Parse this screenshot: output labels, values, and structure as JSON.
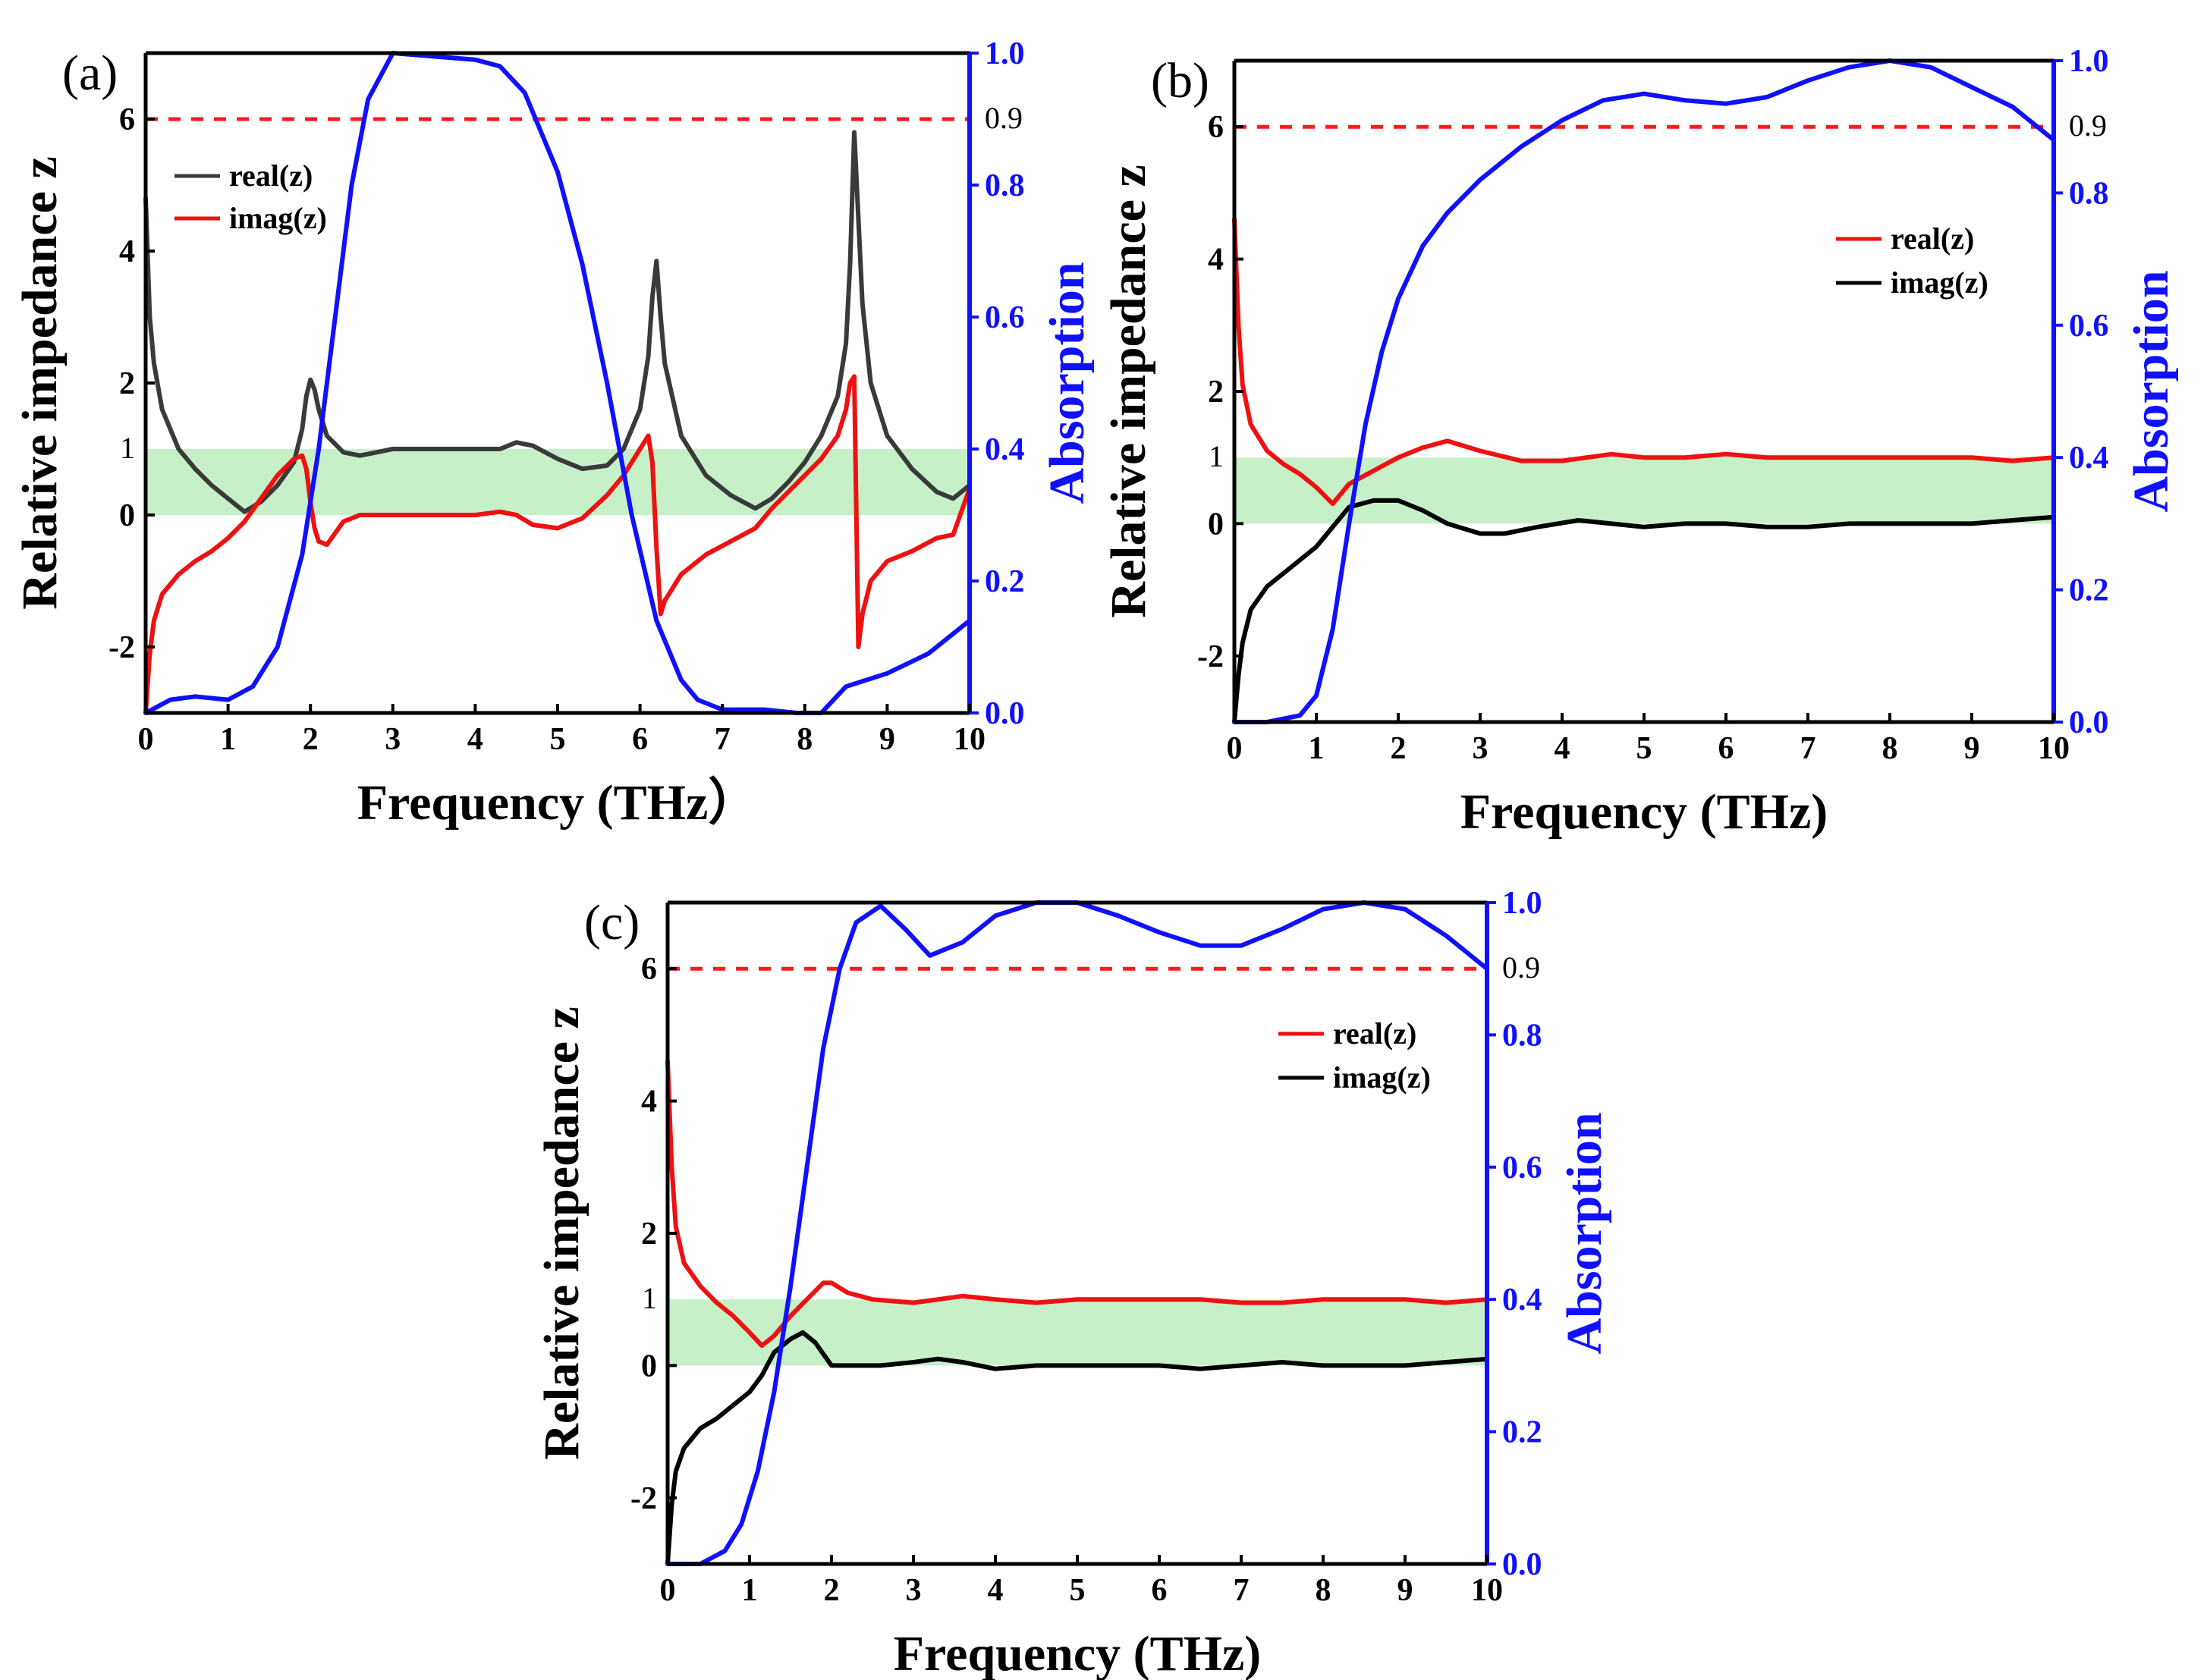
{
  "chart_data": [
    {
      "id": "a",
      "type": "line",
      "panel_label": "(a)",
      "xlabel": "Frequency (THz）",
      "ylabel_left": "Relative impedance z",
      "ylabel_right": "Absorption",
      "xlim": [
        0,
        10
      ],
      "ylim_left": [
        -3,
        7
      ],
      "ylim_right": [
        0,
        1
      ],
      "x_ticks": [
        "0",
        "1",
        "2",
        "3",
        "4",
        "5",
        "6",
        "7",
        "8",
        "9",
        "10"
      ],
      "y_ticks_left": [
        "-2",
        "0",
        "2",
        "4",
        "6"
      ],
      "y_ticks_left_extra": [
        "1"
      ],
      "y_ticks_right": [
        "0.0",
        "0.2",
        "0.4",
        "0.6",
        "0.8",
        "1.0"
      ],
      "y_ticks_right_extra": [
        "0.9"
      ],
      "band": [
        0,
        1
      ],
      "ref_line_absorption": 0.9,
      "legend": [
        "real(z)",
        "imag(z)"
      ],
      "series": [
        {
          "name": "real(z)",
          "color": "#3a3a3a",
          "axis": "left",
          "x": [
            0,
            0.05,
            0.1,
            0.2,
            0.4,
            0.6,
            0.8,
            1.0,
            1.2,
            1.4,
            1.6,
            1.8,
            1.9,
            1.95,
            2.0,
            2.05,
            2.1,
            2.2,
            2.4,
            2.6,
            3.0,
            3.5,
            4.0,
            4.3,
            4.5,
            4.7,
            5.0,
            5.3,
            5.6,
            5.8,
            6.0,
            6.1,
            6.15,
            6.2,
            6.25,
            6.3,
            6.5,
            6.8,
            7.1,
            7.4,
            7.6,
            7.8,
            8.0,
            8.2,
            8.4,
            8.5,
            8.55,
            8.6,
            8.65,
            8.7,
            8.8,
            9.0,
            9.3,
            9.6,
            9.8,
            10.0
          ],
          "y": [
            4.8,
            3.0,
            2.3,
            1.6,
            1.0,
            0.7,
            0.45,
            0.25,
            0.05,
            0.2,
            0.45,
            0.8,
            1.3,
            1.8,
            2.05,
            1.9,
            1.6,
            1.2,
            0.95,
            0.9,
            1.0,
            1.0,
            1.0,
            1.0,
            1.1,
            1.05,
            0.85,
            0.7,
            0.75,
            1.0,
            1.6,
            2.4,
            3.3,
            3.85,
            3.0,
            2.3,
            1.2,
            0.6,
            0.3,
            0.1,
            0.25,
            0.5,
            0.8,
            1.2,
            1.8,
            2.6,
            3.8,
            5.8,
            4.5,
            3.2,
            2.0,
            1.2,
            0.7,
            0.35,
            0.25,
            0.45
          ]
        },
        {
          "name": "imag(z)",
          "color": "#ee1111",
          "axis": "left",
          "x": [
            0,
            0.05,
            0.1,
            0.2,
            0.4,
            0.6,
            0.8,
            1.0,
            1.2,
            1.4,
            1.6,
            1.8,
            1.9,
            1.95,
            2.0,
            2.05,
            2.1,
            2.2,
            2.4,
            2.6,
            3.0,
            3.5,
            4.0,
            4.3,
            4.5,
            4.7,
            5.0,
            5.3,
            5.6,
            5.8,
            6.0,
            6.1,
            6.15,
            6.2,
            6.25,
            6.3,
            6.5,
            6.8,
            7.1,
            7.4,
            7.6,
            7.8,
            8.0,
            8.2,
            8.4,
            8.5,
            8.55,
            8.6,
            8.65,
            8.7,
            8.8,
            9.0,
            9.3,
            9.6,
            9.8,
            10.0
          ],
          "y": [
            -3.0,
            -2.1,
            -1.6,
            -1.2,
            -0.9,
            -0.7,
            -0.55,
            -0.35,
            -0.1,
            0.25,
            0.6,
            0.85,
            0.9,
            0.7,
            0.2,
            -0.2,
            -0.4,
            -0.45,
            -0.1,
            0.0,
            0.0,
            0.0,
            0.0,
            0.05,
            0.0,
            -0.15,
            -0.2,
            -0.05,
            0.3,
            0.6,
            1.0,
            1.2,
            0.8,
            -0.5,
            -1.5,
            -1.3,
            -0.9,
            -0.6,
            -0.4,
            -0.2,
            0.1,
            0.35,
            0.6,
            0.85,
            1.2,
            1.6,
            2.0,
            2.1,
            -2.0,
            -1.5,
            -1.0,
            -0.7,
            -0.55,
            -0.35,
            -0.3,
            0.4
          ]
        },
        {
          "name": "Absorption",
          "color": "#1010ff",
          "axis": "right",
          "x": [
            0,
            0.3,
            0.6,
            1.0,
            1.3,
            1.6,
            1.9,
            2.1,
            2.3,
            2.5,
            2.7,
            3.0,
            3.5,
            4.0,
            4.3,
            4.6,
            5.0,
            5.3,
            5.6,
            5.9,
            6.2,
            6.5,
            6.7,
            7.0,
            7.5,
            7.9,
            8.2,
            8.5,
            9.0,
            9.5,
            10.0
          ],
          "y": [
            0.0,
            0.02,
            0.025,
            0.02,
            0.04,
            0.1,
            0.24,
            0.4,
            0.6,
            0.8,
            0.93,
            1.0,
            0.995,
            0.99,
            0.98,
            0.94,
            0.82,
            0.68,
            0.5,
            0.3,
            0.14,
            0.05,
            0.02,
            0.005,
            0.005,
            0.0,
            0.0,
            0.04,
            0.06,
            0.09,
            0.14
          ]
        }
      ]
    },
    {
      "id": "b",
      "type": "line",
      "panel_label": "(b)",
      "xlabel": "Frequency (THz)",
      "ylabel_left": "Relative impedance z",
      "ylabel_right": "Absorption",
      "xlim": [
        0,
        10
      ],
      "ylim_left": [
        -3,
        7
      ],
      "ylim_right": [
        0,
        1
      ],
      "x_ticks": [
        "0",
        "1",
        "2",
        "3",
        "4",
        "5",
        "6",
        "7",
        "8",
        "9",
        "10"
      ],
      "y_ticks_left": [
        "-2",
        "0",
        "2",
        "4",
        "6"
      ],
      "y_ticks_left_extra": [
        "1"
      ],
      "y_ticks_right": [
        "0.0",
        "0.2",
        "0.4",
        "0.6",
        "0.8",
        "1.0"
      ],
      "y_ticks_right_extra": [
        "0.9"
      ],
      "band": [
        0,
        1
      ],
      "ref_line_absorption": 0.9,
      "legend": [
        "real(z)",
        "imag(z)"
      ],
      "series": [
        {
          "name": "real(z)",
          "color": "#ee1111",
          "axis": "left",
          "x": [
            0,
            0.05,
            0.1,
            0.2,
            0.4,
            0.6,
            0.8,
            1.0,
            1.2,
            1.4,
            1.7,
            2.0,
            2.3,
            2.6,
            3.0,
            3.5,
            4.0,
            4.6,
            5.0,
            5.5,
            6.0,
            6.5,
            7.0,
            7.5,
            8.0,
            8.5,
            9.0,
            9.5,
            10.0
          ],
          "y": [
            4.6,
            3.0,
            2.1,
            1.5,
            1.1,
            0.9,
            0.75,
            0.55,
            0.3,
            0.6,
            0.8,
            1.0,
            1.15,
            1.25,
            1.1,
            0.95,
            0.95,
            1.05,
            1.0,
            1.0,
            1.05,
            1.0,
            1.0,
            1.0,
            1.0,
            1.0,
            1.0,
            0.95,
            1.0
          ]
        },
        {
          "name": "imag(z)",
          "color": "#000000",
          "axis": "left",
          "x": [
            0,
            0.05,
            0.1,
            0.2,
            0.4,
            0.6,
            0.8,
            1.0,
            1.2,
            1.4,
            1.7,
            2.0,
            2.3,
            2.6,
            3.0,
            3.3,
            3.7,
            4.2,
            4.6,
            5.0,
            5.5,
            6.0,
            6.5,
            7.0,
            7.5,
            8.0,
            8.5,
            9.0,
            9.5,
            10.0
          ],
          "y": [
            -3.0,
            -2.3,
            -1.8,
            -1.3,
            -0.95,
            -0.75,
            -0.55,
            -0.35,
            -0.05,
            0.25,
            0.35,
            0.35,
            0.2,
            0.0,
            -0.15,
            -0.15,
            -0.05,
            0.05,
            0.0,
            -0.05,
            0.0,
            0.0,
            -0.05,
            -0.05,
            0.0,
            0.0,
            0.0,
            0.0,
            0.05,
            0.1
          ]
        },
        {
          "name": "Absorption",
          "color": "#1010ff",
          "axis": "right",
          "x": [
            0,
            0.4,
            0.8,
            1.0,
            1.2,
            1.4,
            1.6,
            1.8,
            2.0,
            2.3,
            2.6,
            3.0,
            3.5,
            4.0,
            4.5,
            5.0,
            5.5,
            6.0,
            6.5,
            7.0,
            7.5,
            8.0,
            8.5,
            9.0,
            9.5,
            10.0
          ],
          "y": [
            0.0,
            0.0,
            0.01,
            0.04,
            0.14,
            0.3,
            0.45,
            0.56,
            0.64,
            0.72,
            0.77,
            0.82,
            0.87,
            0.91,
            0.94,
            0.95,
            0.94,
            0.935,
            0.945,
            0.97,
            0.99,
            1.0,
            0.99,
            0.96,
            0.93,
            0.88
          ]
        }
      ]
    },
    {
      "id": "c",
      "type": "line",
      "panel_label": "(c)",
      "xlabel": "Frequency (THz)",
      "ylabel_left": "Relative impedance z",
      "ylabel_right": "Absorption",
      "xlim": [
        0,
        10
      ],
      "ylim_left": [
        -3,
        7
      ],
      "ylim_right": [
        0,
        1
      ],
      "x_ticks": [
        "0",
        "1",
        "2",
        "3",
        "4",
        "5",
        "6",
        "7",
        "8",
        "9",
        "10"
      ],
      "y_ticks_left": [
        "-2",
        "0",
        "2",
        "4",
        "6"
      ],
      "y_ticks_left_extra": [
        "1"
      ],
      "y_ticks_right": [
        "0.0",
        "0.2",
        "0.4",
        "0.6",
        "0.8",
        "1.0"
      ],
      "y_ticks_right_extra": [
        "0.9"
      ],
      "band": [
        0,
        1
      ],
      "ref_line_absorption": 0.9,
      "legend": [
        "real(z)",
        "imag(z)"
      ],
      "series": [
        {
          "name": "real(z)",
          "color": "#ee1111",
          "axis": "left",
          "x": [
            0,
            0.05,
            0.1,
            0.2,
            0.4,
            0.6,
            0.8,
            1.0,
            1.15,
            1.3,
            1.5,
            1.7,
            1.9,
            2.0,
            2.2,
            2.5,
            3.0,
            3.6,
            4.0,
            4.5,
            5.0,
            5.5,
            6.0,
            6.5,
            7.0,
            7.5,
            8.0,
            8.5,
            9.0,
            9.5,
            10.0
          ],
          "y": [
            4.6,
            3.0,
            2.1,
            1.55,
            1.2,
            0.95,
            0.75,
            0.5,
            0.3,
            0.45,
            0.75,
            1.0,
            1.25,
            1.25,
            1.1,
            1.0,
            0.95,
            1.05,
            1.0,
            0.95,
            1.0,
            1.0,
            1.0,
            1.0,
            0.95,
            0.95,
            1.0,
            1.0,
            1.0,
            0.95,
            1.0
          ]
        },
        {
          "name": "imag(z)",
          "color": "#000000",
          "axis": "left",
          "x": [
            0,
            0.05,
            0.1,
            0.2,
            0.4,
            0.6,
            0.8,
            1.0,
            1.15,
            1.3,
            1.5,
            1.65,
            1.8,
            2.0,
            2.2,
            2.6,
            3.0,
            3.3,
            3.6,
            4.0,
            4.5,
            5.0,
            5.5,
            6.0,
            6.5,
            7.0,
            7.5,
            8.0,
            8.5,
            9.0,
            9.5,
            10.0
          ],
          "y": [
            -3.0,
            -2.1,
            -1.6,
            -1.25,
            -0.95,
            -0.8,
            -0.6,
            -0.4,
            -0.15,
            0.2,
            0.4,
            0.5,
            0.35,
            0.0,
            0.0,
            0.0,
            0.05,
            0.1,
            0.05,
            -0.05,
            0.0,
            0.0,
            0.0,
            0.0,
            -0.05,
            0.0,
            0.05,
            0.0,
            0.0,
            0.0,
            0.05,
            0.1
          ]
        },
        {
          "name": "Absorption",
          "color": "#1010ff",
          "axis": "right",
          "x": [
            0,
            0.4,
            0.7,
            0.9,
            1.1,
            1.3,
            1.5,
            1.7,
            1.9,
            2.1,
            2.3,
            2.6,
            2.9,
            3.2,
            3.6,
            4.0,
            4.5,
            5.0,
            5.5,
            6.0,
            6.5,
            7.0,
            7.5,
            8.0,
            8.5,
            9.0,
            9.5,
            10.0
          ],
          "y": [
            0.0,
            0.0,
            0.02,
            0.06,
            0.14,
            0.26,
            0.42,
            0.6,
            0.78,
            0.9,
            0.97,
            0.995,
            0.96,
            0.92,
            0.94,
            0.98,
            1.0,
            1.0,
            0.98,
            0.955,
            0.935,
            0.935,
            0.96,
            0.99,
            1.0,
            0.99,
            0.95,
            0.9
          ]
        }
      ]
    }
  ]
}
